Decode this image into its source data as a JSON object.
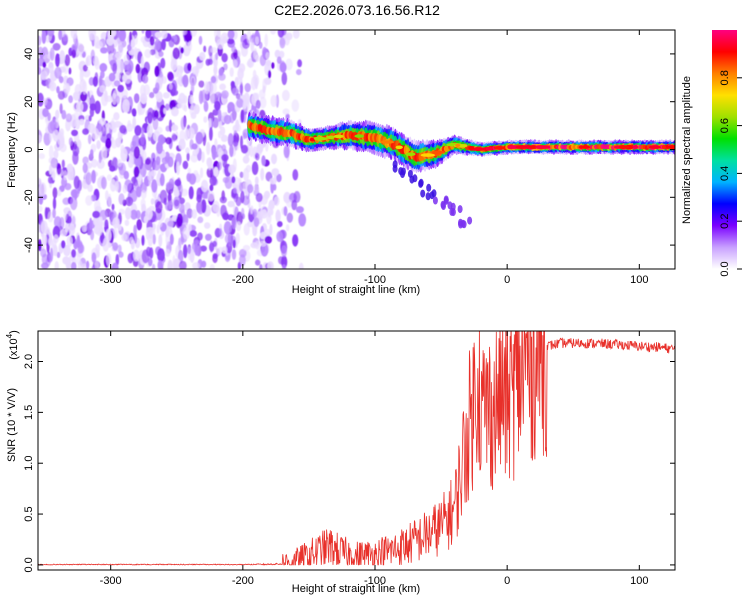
{
  "chart_data": [
    {
      "type": "heatmap",
      "title": "C2E2.2026.073.16.56.R12",
      "xlabel": "Height of straight line (km)",
      "ylabel": "Frequency (Hz)",
      "xlim": [
        -355,
        127
      ],
      "ylim": [
        -50,
        50
      ],
      "xticks": [
        -300,
        -200,
        -100,
        0,
        100
      ],
      "yticks": [
        -40,
        -20,
        0,
        20,
        40
      ],
      "noise_region_x": [
        -355,
        -165
      ],
      "ridge": [
        {
          "x": -195,
          "f": 10,
          "w": 6
        },
        {
          "x": -180,
          "f": 8,
          "w": 6
        },
        {
          "x": -165,
          "f": 7,
          "w": 6
        },
        {
          "x": -150,
          "f": 4,
          "w": 5
        },
        {
          "x": -135,
          "f": 5,
          "w": 5
        },
        {
          "x": -120,
          "f": 6,
          "w": 6
        },
        {
          "x": -100,
          "f": 5,
          "w": 7
        },
        {
          "x": -85,
          "f": 2,
          "w": 7
        },
        {
          "x": -70,
          "f": -3,
          "w": 7
        },
        {
          "x": -55,
          "f": -2,
          "w": 6
        },
        {
          "x": -40,
          "f": 2,
          "w": 4
        },
        {
          "x": -20,
          "f": 0,
          "w": 3
        },
        {
          "x": 0,
          "f": 1,
          "w": 3
        },
        {
          "x": 40,
          "f": 1,
          "w": 3
        },
        {
          "x": 80,
          "f": 1,
          "w": 3
        },
        {
          "x": 120,
          "f": 1,
          "w": 3
        }
      ],
      "tail": [
        {
          "x": -80,
          "f": -8
        },
        {
          "x": -70,
          "f": -12
        },
        {
          "x": -60,
          "f": -18
        },
        {
          "x": -50,
          "f": -22
        },
        {
          "x": -40,
          "f": -25
        },
        {
          "x": -33,
          "f": -32
        }
      ],
      "colorbar": {
        "label": "Normalized spectral amplitude",
        "ticks": [
          "0.0",
          "0.2",
          "0.4",
          "0.6",
          "0.8"
        ],
        "range": [
          0,
          1
        ],
        "colors": [
          "#ffffff",
          "#c8a0ff",
          "#7a00ff",
          "#0000ff",
          "#00b4ff",
          "#00e0a0",
          "#00e000",
          "#a0e000",
          "#ffe000",
          "#ff8000",
          "#ff0000",
          "#ff0080"
        ]
      }
    },
    {
      "type": "line",
      "xlabel": "Height of straight line (km)",
      "ylabel": "SNR (10 * V/V)",
      "yscale_label": "(x10",
      "yscale_exp": "4",
      "xlim": [
        -355,
        127
      ],
      "ylim": [
        -0.05,
        2.3
      ],
      "xticks": [
        -300,
        -200,
        -100,
        0,
        100
      ],
      "yticks": [
        "0.0",
        "0.5",
        "1.0",
        "1.5",
        "2.0"
      ],
      "color": "#e8302a",
      "series": [
        {
          "name": "SNR",
          "x": [
            -355,
            -300,
            -250,
            -200,
            -170,
            -160,
            -145,
            -135,
            -125,
            -115,
            -100,
            -85,
            -75,
            -60,
            -50,
            -40,
            -35,
            -30,
            -25,
            -22,
            -20,
            -15,
            -10,
            -5,
            0,
            10,
            20,
            30,
            40,
            60,
            80,
            100,
            115,
            127
          ],
          "y": [
            0.0,
            0.0,
            0.0,
            0.0,
            0.01,
            0.03,
            0.12,
            0.18,
            0.12,
            0.08,
            0.1,
            0.15,
            0.2,
            0.3,
            0.38,
            0.55,
            0.9,
            1.3,
            1.6,
            2.05,
            1.5,
            1.55,
            1.5,
            1.7,
            1.6,
            1.85,
            2.05,
            2.15,
            2.18,
            2.18,
            2.17,
            2.15,
            2.14,
            2.12
          ]
        }
      ]
    }
  ]
}
